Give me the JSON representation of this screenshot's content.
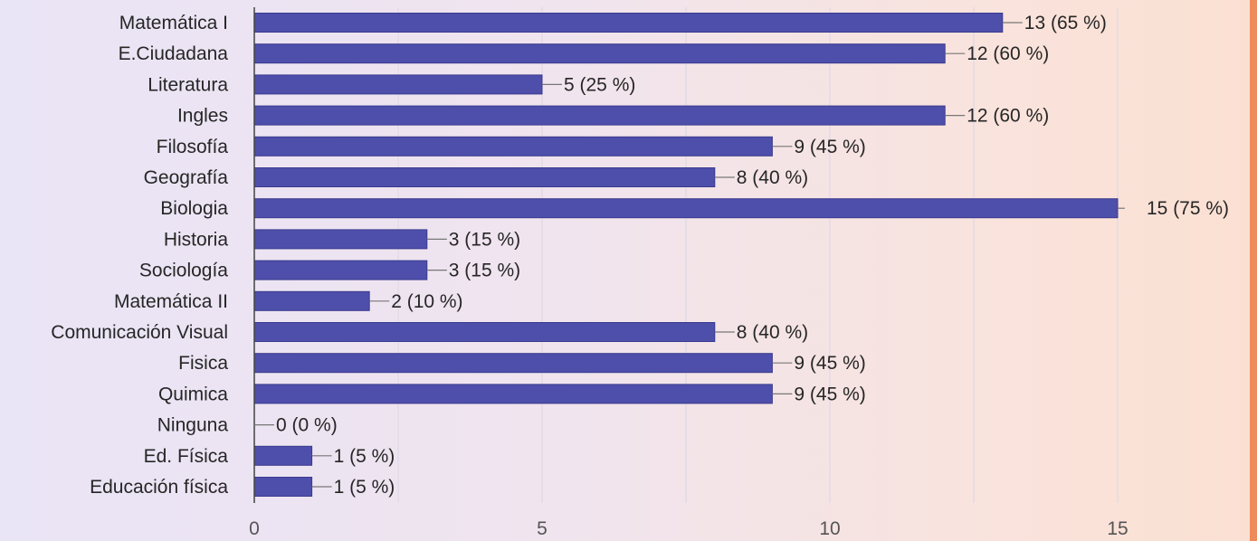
{
  "chart_data": {
    "type": "bar",
    "orientation": "horizontal",
    "title": "",
    "xlabel": "",
    "ylabel": "",
    "categories": [
      "Matemática I",
      "E.Ciudadana",
      "Literatura",
      "Ingles",
      "Filosofía",
      "Geografía",
      "Biologia",
      "Historia",
      "Sociología",
      "Matemática II",
      "Comunicación Visual",
      "Fisica",
      "Quimica",
      "Ninguna",
      "Ed. Física",
      "Educación física"
    ],
    "values": [
      13,
      12,
      5,
      12,
      9,
      8,
      15,
      3,
      3,
      2,
      8,
      9,
      9,
      0,
      1,
      1
    ],
    "value_labels": [
      "13 (65 %)",
      "12 (60 %)",
      "5 (25 %)",
      "12 (60 %)",
      "9 (45 %)",
      "8 (40 %)",
      "15 (75 %)",
      "3 (15 %)",
      "3 (15 %)",
      "2 (10 %)",
      "8 (40 %)",
      "9 (45 %)",
      "9 (45 %)",
      "0 (0 %)",
      "1 (5 %)",
      "1 (5 %)"
    ],
    "xlim": [
      0,
      15
    ],
    "xticks": [
      "0",
      "5",
      "10",
      "15"
    ],
    "grid": true,
    "legend": "none",
    "colors": {
      "bar": "#4e4fab",
      "bar_edge": "#3a3b8e",
      "axis": "#444444",
      "grid": "#dcd6e4",
      "leader": "#777777"
    }
  }
}
